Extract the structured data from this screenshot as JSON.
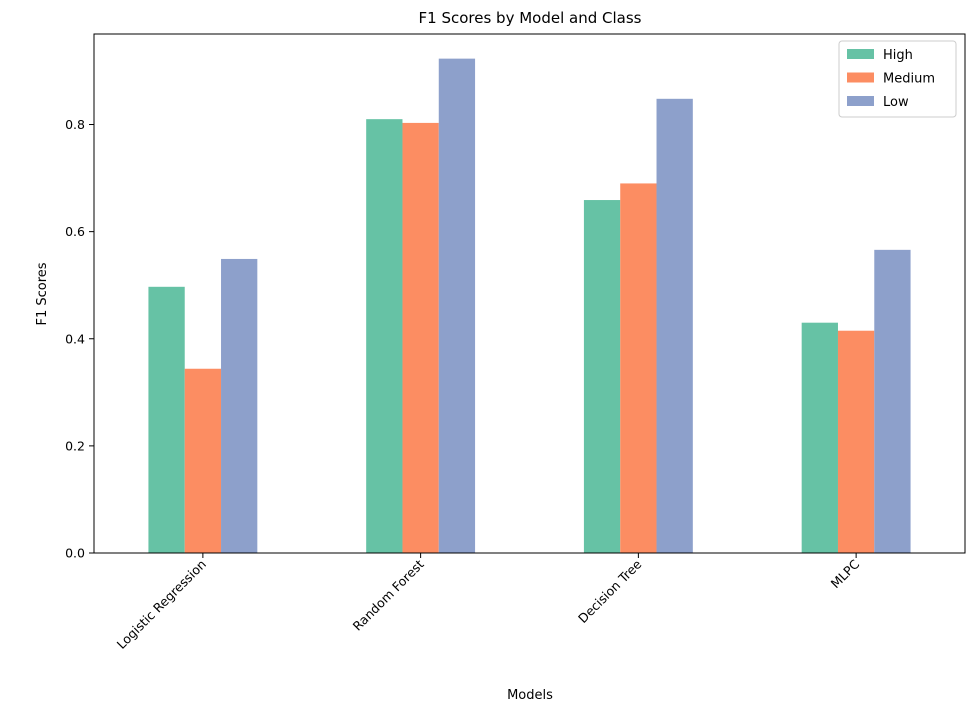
{
  "chart_data": {
    "type": "bar",
    "title": "F1 Scores by Model and Class",
    "xlabel": "Models",
    "ylabel": "F1 Scores",
    "categories": [
      "Logistic Regression",
      "Random Forest",
      "Decision Tree",
      "MLPC"
    ],
    "series": [
      {
        "name": "High",
        "color": "#66c2a5",
        "values": [
          0.497,
          0.81,
          0.659,
          0.43
        ]
      },
      {
        "name": "Medium",
        "color": "#fc8d62",
        "values": [
          0.344,
          0.803,
          0.69,
          0.415
        ]
      },
      {
        "name": "Low",
        "color": "#8da0cb",
        "values": [
          0.549,
          0.923,
          0.848,
          0.566
        ]
      }
    ],
    "ylim": [
      0,
      0.969
    ],
    "yticks": [
      0.0,
      0.2,
      0.4,
      0.6,
      0.8
    ],
    "ytick_labels": [
      "0.0",
      "0.2",
      "0.4",
      "0.6",
      "0.8"
    ],
    "grid": false,
    "legend": "top-right"
  }
}
